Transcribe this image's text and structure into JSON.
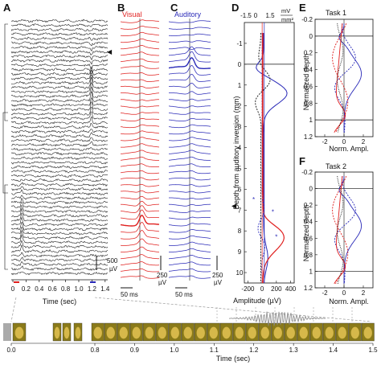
{
  "colors": {
    "visual": "#e0201f",
    "auditory": "#2a2ab8",
    "black": "#111111",
    "gray": "#888888"
  },
  "panels": {
    "A": {
      "label": "A",
      "xlabel": "Time (sec)",
      "xticks": [
        "0",
        "0.2",
        "0.4",
        "0.6",
        "0.8",
        "1.0",
        "1.2",
        "1.4"
      ],
      "scale_value": "500",
      "scale_unit": "µV",
      "marker": "◀"
    },
    "B": {
      "label": "B",
      "title": "Visual",
      "scale_value": "250",
      "scale_unit": "µV",
      "timebar": "50 ms"
    },
    "C": {
      "label": "C",
      "title": "Auditory",
      "scale_value": "250",
      "scale_unit": "µV",
      "timebar": "50 ms"
    },
    "D": {
      "label": "D",
      "top_ticks": [
        "-1.5",
        "0",
        "1.5"
      ],
      "top_unit_num": "mV",
      "top_unit_den": "mm²",
      "ylabel": "Depth from auditory inversion (mm)",
      "yticks": [
        "-1",
        "0",
        "1",
        "2",
        "3",
        "4",
        "5",
        "6",
        "7",
        "8",
        "9",
        "10"
      ],
      "xlabel": "Amplitude (µV)",
      "xticks": [
        "-200",
        "0",
        "200",
        "400"
      ]
    },
    "E": {
      "label": "E",
      "title": "Task 1",
      "ylabel": "Normalized depth",
      "yticks": [
        "-0.2",
        "0",
        "0.2",
        "0.4",
        "0.6",
        "0.8",
        "1",
        "1.2"
      ],
      "xlabel": "Norm. Ampl.",
      "xticks": [
        "-2",
        "0",
        "2"
      ]
    },
    "F": {
      "label": "F",
      "title": "Task 2",
      "ylabel": "Normalized depth",
      "yticks": [
        "-0.2",
        "0",
        "0.2",
        "0.4",
        "0.6",
        "0.8",
        "1",
        "1.2"
      ],
      "xlabel": "Norm. Ampl.",
      "xticks": [
        "-2",
        "0",
        "2"
      ]
    },
    "timeline": {
      "xlabel": "Time (sec)",
      "xticks": [
        "0.0",
        "0.8",
        "0.9",
        "1.0",
        "1.1",
        "1.2",
        "1.3",
        "1.4",
        "1.5"
      ]
    }
  },
  "chart_data": [
    {
      "panel": "A",
      "type": "line",
      "description_free": true,
      "n_channels": 58,
      "x_range": [
        0,
        1.4
      ],
      "xlabel": "Time (sec)"
    },
    {
      "panel": "B",
      "type": "line",
      "title": "Visual",
      "n_channels": 40
    },
    {
      "panel": "C",
      "type": "line",
      "title": "Auditory",
      "n_channels": 40
    },
    {
      "panel": "D",
      "type": "line",
      "xlabel": "Amplitude (µV)",
      "ylabel": "Depth from auditory inversion (mm)",
      "xlim": [
        -250,
        450
      ],
      "ylim": [
        -2,
        10.5
      ]
    },
    {
      "panel": "E",
      "type": "line",
      "title": "Task 1",
      "xlabel": "Norm. Ampl.",
      "ylabel": "Normalized depth",
      "xlim": [
        -3,
        3
      ],
      "ylim": [
        -0.2,
        1.2
      ]
    },
    {
      "panel": "F",
      "type": "line",
      "title": "Task 2",
      "xlabel": "Norm. Ampl.",
      "ylabel": "Normalized depth",
      "xlim": [
        -3,
        3
      ],
      "ylim": [
        -0.2,
        1.2
      ]
    },
    {
      "panel": "timeline",
      "type": "line",
      "xlabel": "Time (sec)",
      "x": [
        0.0,
        0.8,
        0.9,
        1.0,
        1.1,
        1.2,
        1.3,
        1.4,
        1.5
      ]
    }
  ]
}
